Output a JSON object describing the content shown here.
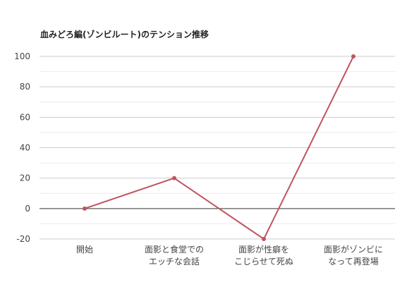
{
  "chart_data": {
    "type": "line",
    "title": "血みどろ編(ゾンビルート)のテンション推移",
    "categories": [
      [
        "開始"
      ],
      [
        "面影と食堂での",
        "エッチな会話"
      ],
      [
        "面影が性癖を",
        "こじらせて死ぬ"
      ],
      [
        "面影がゾンビに",
        "なって再登場"
      ]
    ],
    "series": [
      {
        "values": [
          0,
          20,
          -20,
          100
        ]
      }
    ],
    "ylim": [
      -20,
      100
    ],
    "yticks": [
      -20,
      0,
      20,
      40,
      60,
      80,
      100
    ],
    "grid": true,
    "colors": {
      "line": "#c0545f",
      "grid_major": "#cccccc",
      "grid_minor": "#ebebeb",
      "zero_line": "#333333"
    }
  }
}
